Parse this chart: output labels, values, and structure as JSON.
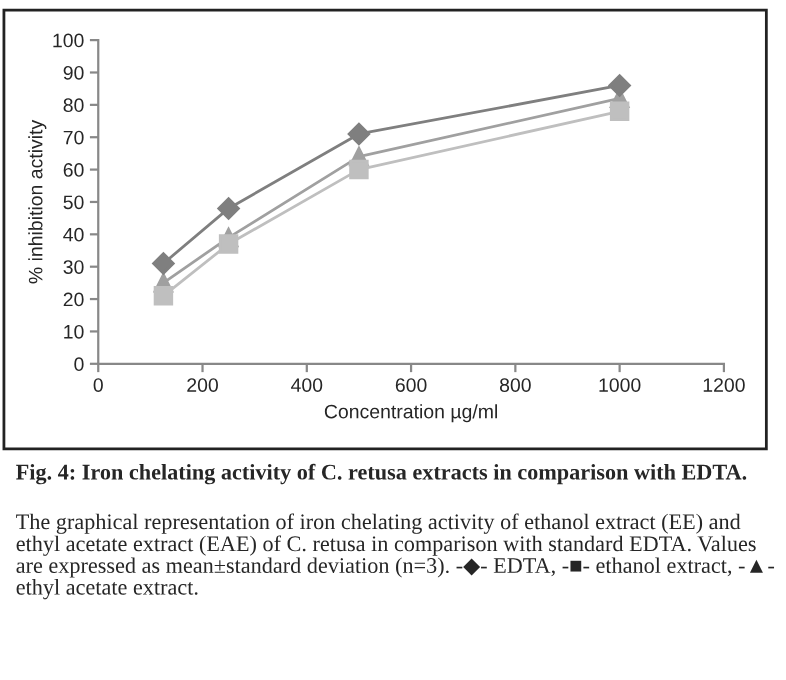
{
  "chart_data": {
    "type": "line",
    "xlabel": "Concentration µg/ml",
    "ylabel": "% inhibition activity",
    "x": [
      125,
      250,
      500,
      1000
    ],
    "series": [
      {
        "color": "#7f7f7f",
        "marker": "diamond",
        "values": [
          31,
          48,
          71,
          86
        ]
      },
      {
        "color": "#bfbfbf",
        "marker": "square",
        "values": [
          21,
          37,
          60,
          78
        ]
      },
      {
        "color": "#a0a0a0",
        "marker": "triangle",
        "values": [
          25,
          39,
          64,
          82
        ]
      }
    ],
    "xlim": [
      0,
      1200
    ],
    "xticks": [
      0,
      200,
      400,
      600,
      800,
      1000,
      1200
    ],
    "ylim": [
      0,
      100
    ],
    "yticks": [
      0,
      10,
      20,
      30,
      40,
      50,
      60,
      70,
      80,
      90,
      100
    ],
    "grid": false,
    "legend": false,
    "line_style": "solid",
    "annotations": [
      "Fig. 4: Iron chelating activity of C. retusa extracts in comparison with EDTA.",
      "The graphical representation of iron chelating activity of ethanol extract (EE) and ethyl acetate extract (EAE) of C. retusa in comparison with standard EDTA. Values are expressed as mean±standard deviation (n=3). -◆- EDTA, -■- ethanol extract, -▲- ethyl acetate extract."
    ]
  }
}
